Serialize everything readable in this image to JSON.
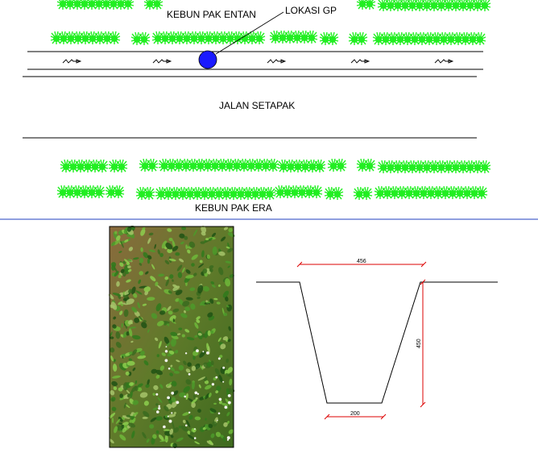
{
  "site_plan": {
    "label_top_garden": "KEBUN PAK ENTAN",
    "label_gp_location": "LOKASI GP",
    "label_path": "JALAN SETAPAK",
    "label_bottom_garden": "KEBUN PAK ERA",
    "colors": {
      "vegetation": "#22ee22",
      "gp_marker": "#1a1aff",
      "divider": "#1f3fbf"
    }
  },
  "photo": {
    "description_icon": "ditch-vegetation-photo"
  },
  "cross_section": {
    "dimensions": {
      "top_width": "456",
      "depth": "450",
      "bottom_width": "200"
    },
    "colors": {
      "profile": "#000000",
      "dimension": "#dd0000"
    }
  }
}
